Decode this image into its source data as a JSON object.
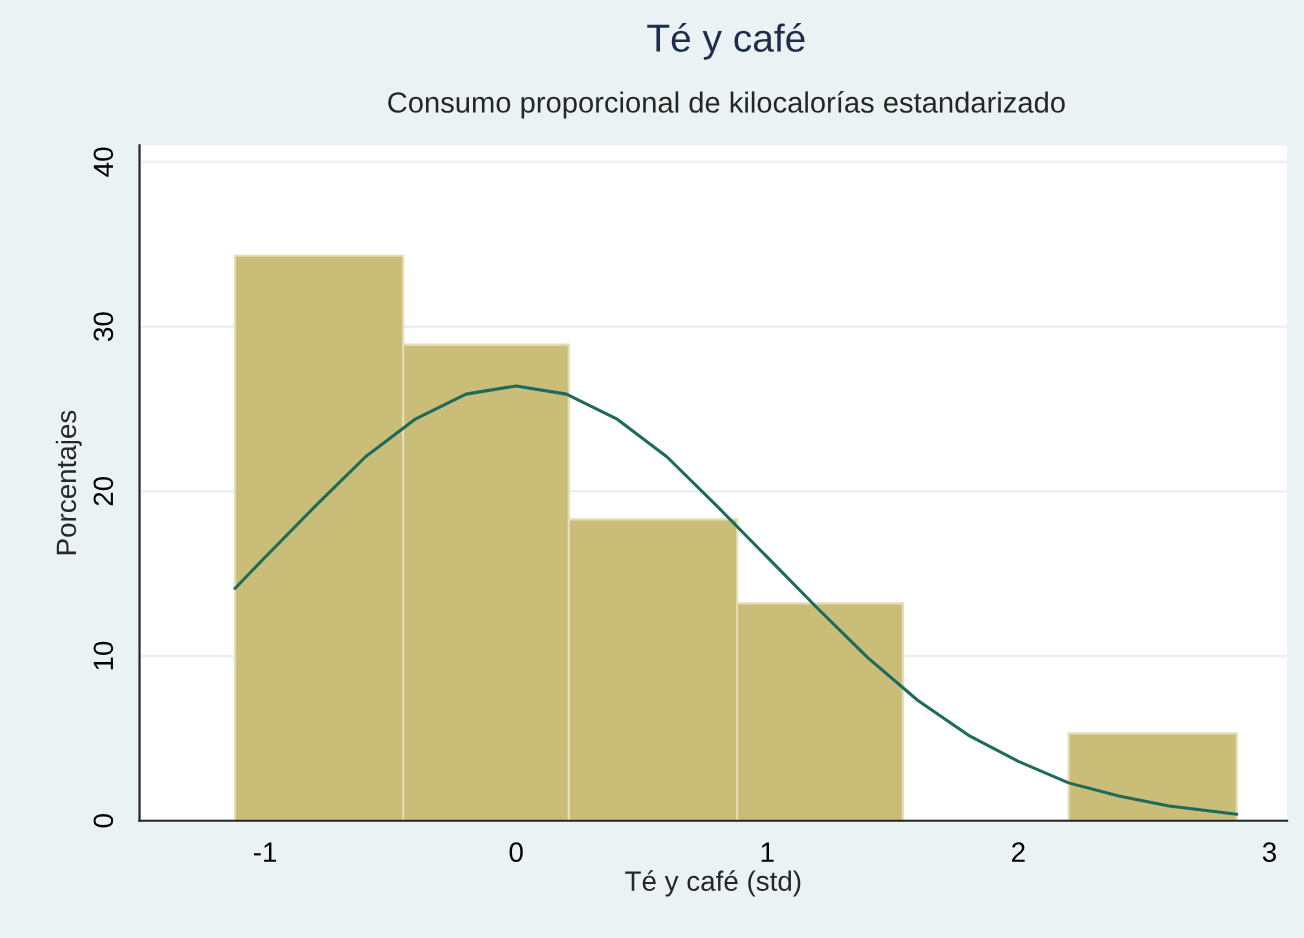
{
  "chart_data": {
    "type": "histogram",
    "title": "Té y café",
    "subtitle": "Consumo proporcional de kilocalorías estandarizado",
    "xlabel": "Té y café (std)",
    "ylabel": "Porcentajes",
    "bins": [
      -1.12,
      -0.45,
      0.21,
      0.88,
      1.54,
      2.2,
      2.87
    ],
    "series": [
      {
        "color": "#c9bd78",
        "values": [
          34.3,
          28.9,
          18.3,
          13.2,
          null,
          5.3
        ]
      },
      {
        "type": "line",
        "color": "#1e6b5c",
        "x": [
          -1.12,
          -1.0,
          -0.8,
          -0.6,
          -0.4,
          -0.2,
          0,
          0.2,
          0.4,
          0.6,
          0.8,
          1.0,
          1.2,
          1.4,
          1.6,
          1.8,
          2.0,
          2.2,
          2.4,
          2.6,
          2.87
        ],
        "values": [
          14.1,
          16.0,
          19.1,
          22.1,
          24.4,
          25.9,
          26.4,
          25.9,
          24.4,
          22.1,
          19.1,
          16.0,
          12.9,
          9.9,
          7.3,
          5.2,
          3.6,
          2.3,
          1.5,
          0.9,
          0.4
        ]
      }
    ],
    "xlim": [
      -1.5,
      3.07
    ],
    "ylim": [
      0,
      41
    ],
    "xticks": [
      -1,
      0,
      1,
      2,
      3
    ],
    "yticks": [
      0,
      10,
      20,
      30,
      40
    ],
    "grid": "y",
    "legend": false
  }
}
